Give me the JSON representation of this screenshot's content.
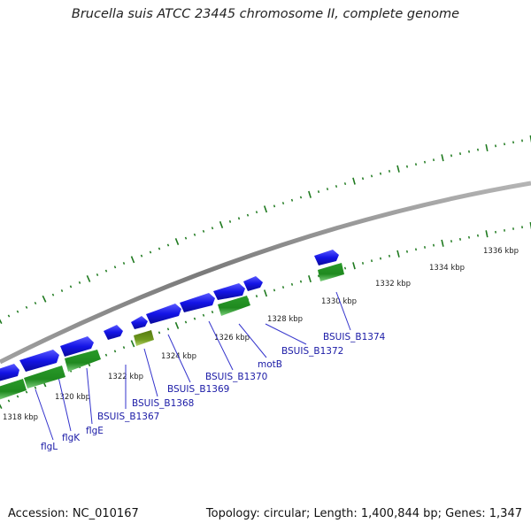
{
  "map": {
    "title": "Brucella suis ATCC 23445 chromosome II, complete genome",
    "accession_text": "Accession: NC_010167",
    "summary_text": "Topology: circular; Length: 1,400,844 bp; Genes: 1,347"
  },
  "colors": {
    "backbone": "#8a8a8a",
    "cds_forward": "#1414e6",
    "gene_reverse": "#1f8a1f",
    "gene_other": "#6f9a1e",
    "ticks": "#1f7a1f",
    "label_text": "#1a1aa6",
    "leader": "#3333cc"
  },
  "ticks": [
    {
      "label": "1318 kbp"
    },
    {
      "label": "1320 kbp"
    },
    {
      "label": "1322 kbp"
    },
    {
      "label": "1324 kbp"
    },
    {
      "label": "1326 kbp"
    },
    {
      "label": "1328 kbp"
    },
    {
      "label": "1330 kbp"
    },
    {
      "label": "1332 kbp"
    },
    {
      "label": "1334 kbp"
    },
    {
      "label": "1336 kbp"
    }
  ],
  "gene_labels": [
    {
      "id": "flgL",
      "text": "flgL"
    },
    {
      "id": "flgK",
      "text": "flgK"
    },
    {
      "id": "flgE",
      "text": "flgE"
    },
    {
      "id": "BSUIS_B1367",
      "text": "BSUIS_B1367"
    },
    {
      "id": "BSUIS_B1368",
      "text": "BSUIS_B1368"
    },
    {
      "id": "BSUIS_B1369",
      "text": "BSUIS_B1369"
    },
    {
      "id": "BSUIS_B1370",
      "text": "BSUIS_B1370"
    },
    {
      "id": "motB",
      "text": "motB"
    },
    {
      "id": "BSUIS_B1372",
      "text": "BSUIS_B1372"
    },
    {
      "id": "BSUIS_B1374",
      "text": "BSUIS_B1374"
    }
  ]
}
